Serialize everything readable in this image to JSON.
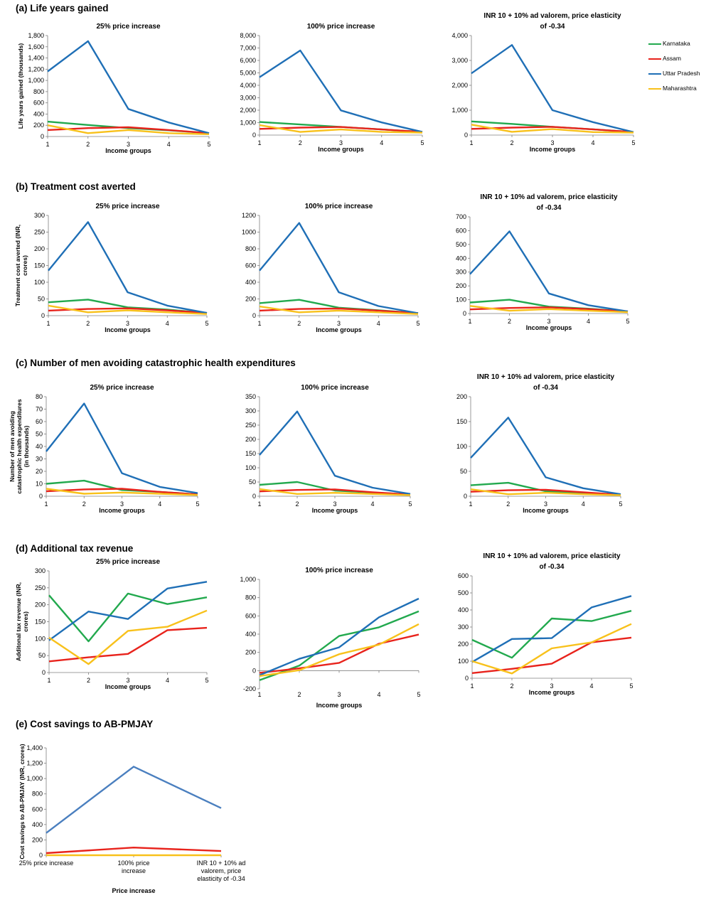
{
  "legend": {
    "items": [
      {
        "label": "Karnataka",
        "color": "#22a94e"
      },
      {
        "label": "Assam",
        "color": "#e8231c"
      },
      {
        "label": "Uttar Pradesh",
        "color": "#1f6fb6"
      },
      {
        "label": "Maharashtra",
        "color": "#f8c11b"
      }
    ]
  },
  "sections": [
    {
      "label": "(a) Life years gained"
    },
    {
      "label": "(b) Treatment cost averted"
    },
    {
      "label": "(c) Number of men avoiding catastrophic health expenditures"
    },
    {
      "label": "(d) Additional tax revenue"
    },
    {
      "label": "(e) Cost savings to AB-PMJAY"
    }
  ],
  "chart_data": [
    {
      "type": "line",
      "section": "(a) Life years gained",
      "title": [
        "25% price increase"
      ],
      "xlabel": "Income groups",
      "ylabel": [
        "Life years gained (thousands)"
      ],
      "x": [
        "1",
        "2",
        "3",
        "4",
        "5"
      ],
      "ylim": [
        0,
        1800
      ],
      "ystep": 200,
      "ytick_format": "comma",
      "series": [
        {
          "name": "Karnataka",
          "color": "#22a94e",
          "values": [
            265,
            205,
            150,
            110,
            60
          ]
        },
        {
          "name": "Assam",
          "color": "#e8231c",
          "values": [
            115,
            150,
            165,
            115,
            60
          ]
        },
        {
          "name": "Uttar Pradesh",
          "color": "#1f6fb6",
          "values": [
            1160,
            1700,
            490,
            250,
            60
          ]
        },
        {
          "name": "Maharashtra",
          "color": "#f8c11b",
          "values": [
            200,
            60,
            115,
            60,
            40
          ]
        }
      ]
    },
    {
      "type": "line",
      "section": "(a) Life years gained",
      "title": [
        "100% price increase"
      ],
      "xlabel": "Income groups",
      "ylabel": [],
      "x": [
        "1",
        "2",
        "3",
        "4",
        "5"
      ],
      "ylim": [
        0,
        8000
      ],
      "ystep": 1000,
      "ytick_format": "comma",
      "series": [
        {
          "name": "Karnataka",
          "color": "#22a94e",
          "values": [
            1050,
            850,
            650,
            450,
            250
          ]
        },
        {
          "name": "Assam",
          "color": "#e8231c",
          "values": [
            500,
            600,
            650,
            450,
            250
          ]
        },
        {
          "name": "Uttar Pradesh",
          "color": "#1f6fb6",
          "values": [
            4650,
            6800,
            1980,
            1020,
            250
          ]
        },
        {
          "name": "Maharashtra",
          "color": "#f8c11b",
          "values": [
            800,
            250,
            450,
            250,
            200
          ]
        }
      ]
    },
    {
      "type": "line",
      "section": "(a) Life years gained",
      "title": [
        "INR 10 + 10% ad valorem, price elasticity",
        "of -0.34"
      ],
      "xlabel": "Income groups",
      "ylabel": [],
      "x": [
        "1",
        "2",
        "3",
        "4",
        "5"
      ],
      "ylim": [
        0,
        4000
      ],
      "ystep": 1000,
      "ytick_format": "comma",
      "series": [
        {
          "name": "Karnataka",
          "color": "#22a94e",
          "values": [
            550,
            450,
            330,
            230,
            120
          ]
        },
        {
          "name": "Assam",
          "color": "#e8231c",
          "values": [
            250,
            300,
            330,
            230,
            120
          ]
        },
        {
          "name": "Uttar Pradesh",
          "color": "#1f6fb6",
          "values": [
            2480,
            3620,
            1000,
            520,
            120
          ]
        },
        {
          "name": "Maharashtra",
          "color": "#f8c11b",
          "values": [
            420,
            130,
            240,
            120,
            100
          ]
        }
      ]
    },
    {
      "type": "line",
      "section": "(b) Treatment cost averted",
      "title": [
        "25% price increase"
      ],
      "xlabel": "Income groups",
      "ylabel": [
        "Treatment cost averted (INR,",
        "crores)"
      ],
      "x": [
        "1",
        "2",
        "3",
        "4",
        "5"
      ],
      "ylim": [
        0,
        300
      ],
      "ystep": 50,
      "ytick_format": "plain",
      "series": [
        {
          "name": "Karnataka",
          "color": "#22a94e",
          "values": [
            40,
            48,
            25,
            18,
            8
          ]
        },
        {
          "name": "Assam",
          "color": "#e8231c",
          "values": [
            15,
            20,
            22,
            16,
            8
          ]
        },
        {
          "name": "Uttar Pradesh",
          "color": "#1f6fb6",
          "values": [
            135,
            280,
            70,
            30,
            8
          ]
        },
        {
          "name": "Maharashtra",
          "color": "#f8c11b",
          "values": [
            30,
            10,
            16,
            10,
            5
          ]
        }
      ]
    },
    {
      "type": "line",
      "section": "(b) Treatment cost averted",
      "title": [
        "100% price increase"
      ],
      "xlabel": "Income groups",
      "ylabel": [],
      "x": [
        "1",
        "2",
        "3",
        "4",
        "5"
      ],
      "ylim": [
        0,
        1200
      ],
      "ystep": 200,
      "ytick_format": "plain",
      "series": [
        {
          "name": "Karnataka",
          "color": "#22a94e",
          "values": [
            150,
            190,
            95,
            65,
            30
          ]
        },
        {
          "name": "Assam",
          "color": "#e8231c",
          "values": [
            60,
            80,
            85,
            60,
            30
          ]
        },
        {
          "name": "Uttar Pradesh",
          "color": "#1f6fb6",
          "values": [
            540,
            1110,
            280,
            115,
            30
          ]
        },
        {
          "name": "Maharashtra",
          "color": "#f8c11b",
          "values": [
            110,
            40,
            60,
            40,
            20
          ]
        }
      ]
    },
    {
      "type": "line",
      "section": "(b) Treatment cost averted",
      "title": [
        "INR 10 + 10% ad valorem, price elasticity",
        "of -0.34"
      ],
      "xlabel": "Income groups",
      "ylabel": [],
      "x": [
        "1",
        "2",
        "3",
        "4",
        "5"
      ],
      "ylim": [
        0,
        700
      ],
      "ystep": 100,
      "ytick_format": "plain",
      "series": [
        {
          "name": "Karnataka",
          "color": "#22a94e",
          "values": [
            80,
            100,
            50,
            35,
            15
          ]
        },
        {
          "name": "Assam",
          "color": "#e8231c",
          "values": [
            30,
            40,
            45,
            32,
            15
          ]
        },
        {
          "name": "Uttar Pradesh",
          "color": "#1f6fb6",
          "values": [
            285,
            595,
            145,
            60,
            15
          ]
        },
        {
          "name": "Maharashtra",
          "color": "#f8c11b",
          "values": [
            55,
            20,
            32,
            20,
            10
          ]
        }
      ]
    },
    {
      "type": "line",
      "section": "(c) Number of men avoiding catastrophic health expenditures",
      "title": [
        "25% price increase"
      ],
      "xlabel": "Income groups",
      "ylabel": [
        "Number of men avoiding",
        "catastrophic health expenditures",
        "(in thousands)"
      ],
      "x": [
        "1",
        "2",
        "3",
        "4",
        "5"
      ],
      "ylim": [
        0,
        80
      ],
      "ystep": 10,
      "ytick_format": "plain",
      "series": [
        {
          "name": "Karnataka",
          "color": "#22a94e",
          "values": [
            10,
            12.5,
            5,
            3.5,
            1.5
          ]
        },
        {
          "name": "Assam",
          "color": "#e8231c",
          "values": [
            4,
            5.5,
            6,
            3.5,
            1.5
          ]
        },
        {
          "name": "Uttar Pradesh",
          "color": "#1f6fb6",
          "values": [
            36,
            74.5,
            18.5,
            7.5,
            2.5
          ]
        },
        {
          "name": "Maharashtra",
          "color": "#f8c11b",
          "values": [
            6,
            2,
            3,
            2,
            1
          ]
        }
      ]
    },
    {
      "type": "line",
      "section": "(c) Number of men avoiding catastrophic health expenditures",
      "title": [
        "100% price increase"
      ],
      "xlabel": "Income groups",
      "ylabel": [],
      "x": [
        "1",
        "2",
        "3",
        "4",
        "5"
      ],
      "ylim": [
        0,
        350
      ],
      "ystep": 50,
      "ytick_format": "plain",
      "series": [
        {
          "name": "Karnataka",
          "color": "#22a94e",
          "values": [
            40,
            50,
            20,
            13,
            6
          ]
        },
        {
          "name": "Assam",
          "color": "#e8231c",
          "values": [
            17,
            22,
            24,
            14,
            6
          ]
        },
        {
          "name": "Uttar Pradesh",
          "color": "#1f6fb6",
          "values": [
            145,
            298,
            72,
            30,
            8
          ]
        },
        {
          "name": "Maharashtra",
          "color": "#f8c11b",
          "values": [
            25,
            8,
            12,
            8,
            4
          ]
        }
      ]
    },
    {
      "type": "line",
      "section": "(c) Number of men avoiding catastrophic health expenditures",
      "title": [
        "INR 10 + 10% ad valorem, price elasticity",
        "of -0.34"
      ],
      "xlabel": "Income groups",
      "ylabel": [],
      "x": [
        "1",
        "2",
        "3",
        "4",
        "5"
      ],
      "ylim": [
        0,
        200
      ],
      "ystep": 50,
      "ytick_format": "plain",
      "series": [
        {
          "name": "Karnataka",
          "color": "#22a94e",
          "values": [
            22,
            27,
            10,
            7,
            3
          ]
        },
        {
          "name": "Assam",
          "color": "#e8231c",
          "values": [
            9,
            12,
            13,
            8,
            3
          ]
        },
        {
          "name": "Uttar Pradesh",
          "color": "#1f6fb6",
          "values": [
            77,
            158,
            38,
            16,
            4
          ]
        },
        {
          "name": "Maharashtra",
          "color": "#f8c11b",
          "values": [
            14,
            4,
            7,
            4,
            2
          ]
        }
      ]
    },
    {
      "type": "line",
      "section": "(d) Additional tax revenue",
      "title": [
        "25% price increase"
      ],
      "xlabel": "Income groups",
      "ylabel": [
        "Additonal tax revenue (INR,",
        "crores)"
      ],
      "x": [
        "1",
        "2",
        "3",
        "4",
        "5"
      ],
      "ylim": [
        0,
        300
      ],
      "ystep": 50,
      "ytick_format": "plain",
      "series": [
        {
          "name": "Karnataka",
          "color": "#22a94e",
          "values": [
            228,
            92,
            233,
            202,
            222
          ]
        },
        {
          "name": "Assam",
          "color": "#e8231c",
          "values": [
            33,
            45,
            55,
            125,
            132
          ]
        },
        {
          "name": "Uttar Pradesh",
          "color": "#1f6fb6",
          "values": [
            95,
            180,
            158,
            248,
            268
          ]
        },
        {
          "name": "Maharashtra",
          "color": "#f8c11b",
          "values": [
            103,
            25,
            123,
            135,
            183
          ]
        }
      ]
    },
    {
      "type": "line",
      "section": "(d) Additional tax revenue",
      "title": [
        "100% price increase"
      ],
      "xlabel": "Income groups",
      "ylabel": [],
      "x": [
        "1",
        "2",
        "3",
        "4",
        "5"
      ],
      "ylim": [
        -200,
        1000
      ],
      "ystep": 200,
      "ytick_format": "comma",
      "xaxis_at_zero": true,
      "series": [
        {
          "name": "Karnataka",
          "color": "#22a94e",
          "values": [
            -105,
            55,
            380,
            475,
            650
          ]
        },
        {
          "name": "Assam",
          "color": "#e8231c",
          "values": [
            -25,
            25,
            85,
            295,
            395
          ]
        },
        {
          "name": "Uttar Pradesh",
          "color": "#1f6fb6",
          "values": [
            -50,
            130,
            255,
            585,
            790
          ]
        },
        {
          "name": "Maharashtra",
          "color": "#f8c11b",
          "values": [
            -60,
            5,
            180,
            285,
            510
          ]
        }
      ]
    },
    {
      "type": "line",
      "section": "(d) Additional tax revenue",
      "title": [
        "INR 10 + 10% ad valorem, price elasticity",
        "of -0.34"
      ],
      "xlabel": "Income groups",
      "ylabel": [],
      "x": [
        "1",
        "2",
        "3",
        "4",
        "5"
      ],
      "ylim": [
        0,
        600
      ],
      "ystep": 100,
      "ytick_format": "plain",
      "series": [
        {
          "name": "Karnataka",
          "color": "#22a94e",
          "values": [
            225,
            120,
            350,
            335,
            395
          ]
        },
        {
          "name": "Assam",
          "color": "#e8231c",
          "values": [
            30,
            55,
            85,
            210,
            238
          ]
        },
        {
          "name": "Uttar Pradesh",
          "color": "#1f6fb6",
          "values": [
            95,
            230,
            235,
            415,
            482
          ]
        },
        {
          "name": "Maharashtra",
          "color": "#f8c11b",
          "values": [
            100,
            28,
            175,
            210,
            318
          ]
        }
      ]
    },
    {
      "type": "line",
      "section": "(e) Cost savings to AB-PMJAY",
      "title": [],
      "xlabel": "Price increase",
      "ylabel": [
        "Cost savings to AB-PMJAY (INR, crores)"
      ],
      "x": [
        [
          "25% price increase"
        ],
        [
          "100% price",
          "increase"
        ],
        [
          "INR 10 + 10% ad",
          "valorem, price",
          "elasticity of -0.34"
        ]
      ],
      "ylim": [
        0,
        1400
      ],
      "ystep": 200,
      "ytick_format": "comma",
      "series": [
        {
          "name": "Uttar Pradesh",
          "color": "#4a7fbf",
          "values": [
            290,
            1155,
            615
          ]
        },
        {
          "name": "Assam",
          "color": "#e8231c",
          "values": [
            28,
            100,
            55
          ]
        },
        {
          "name": "Maharashtra",
          "color": "#f8c11b",
          "values": [
            0,
            0,
            0
          ]
        }
      ]
    }
  ]
}
